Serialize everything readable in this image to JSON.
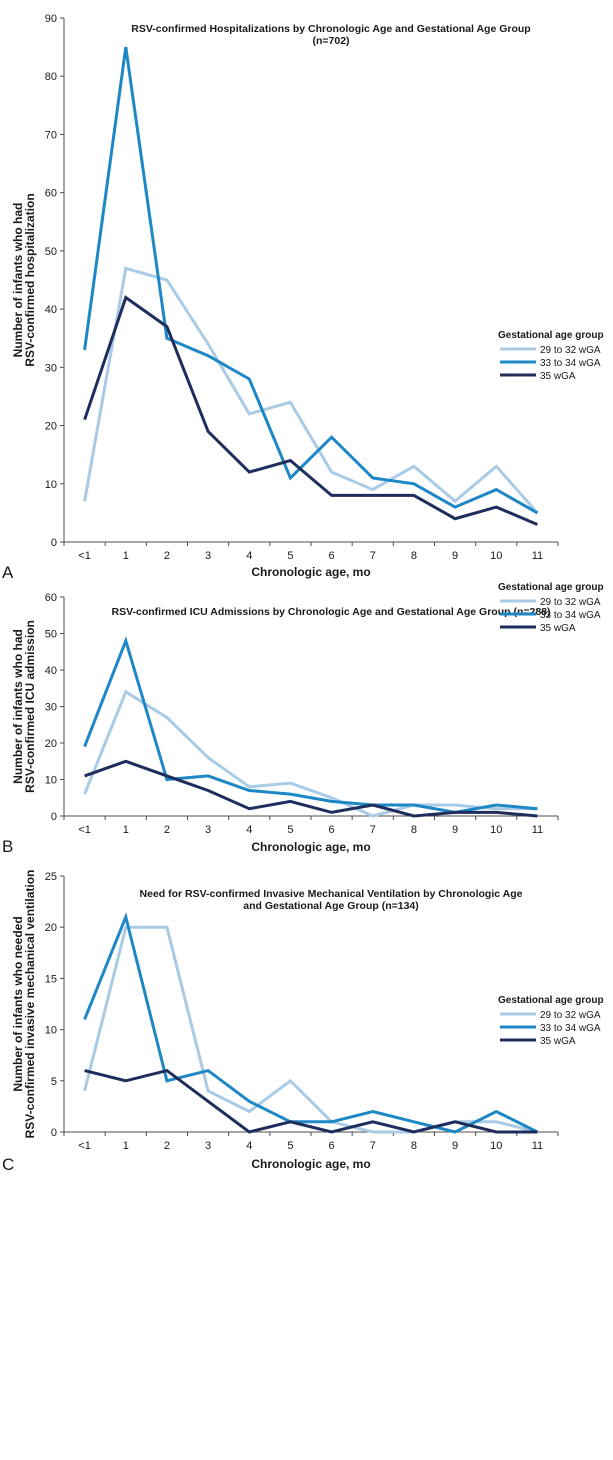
{
  "chart_data": [
    {
      "type": "line",
      "panel": "A",
      "title": "RSV-confirmed Hospitalizations by Chronologic Age and Gestational Age Group",
      "title_line2": "(n=702)",
      "xlabel": "Chronologic age, mo",
      "ylabel": "Number of infants who had",
      "ylabel_line2": "RSV-confirmed hospitalization",
      "categories": [
        "<1",
        "1",
        "2",
        "3",
        "4",
        "5",
        "6",
        "7",
        "8",
        "9",
        "10",
        "11"
      ],
      "ylim": [
        0,
        90
      ],
      "yticks": [
        0,
        10,
        20,
        30,
        40,
        50,
        60,
        70,
        80,
        90
      ],
      "legend_title": "Gestational age group",
      "legend_position": "right",
      "series": [
        {
          "name": "29 to 32 wGA",
          "color": "#a9cbe6",
          "values": [
            7,
            47,
            45,
            34,
            22,
            24,
            12,
            9,
            13,
            7,
            13,
            5
          ]
        },
        {
          "name": "33 to 34 wGA",
          "color": "#1e87c6",
          "values": [
            33,
            85,
            35,
            32,
            28,
            11,
            18,
            11,
            10,
            6,
            9,
            5
          ]
        },
        {
          "name": "35 wGA",
          "color": "#1f2d5c",
          "values": [
            21,
            42,
            37,
            19,
            12,
            14,
            8,
            8,
            8,
            4,
            6,
            3
          ]
        }
      ]
    },
    {
      "type": "line",
      "panel": "B",
      "title": "RSV-confirmed ICU Admissions by Chronologic Age and Gestational Age Group (n=288)",
      "title_line2": "",
      "xlabel": "Chronologic age, mo",
      "ylabel": "Number of infants who had",
      "ylabel_line2": "RSV-confirmed ICU admission",
      "categories": [
        "<1",
        "1",
        "2",
        "3",
        "4",
        "5",
        "6",
        "7",
        "8",
        "9",
        "10",
        "11"
      ],
      "ylim": [
        0,
        60
      ],
      "yticks": [
        0,
        10,
        20,
        30,
        40,
        50,
        60
      ],
      "legend_title": "Gestational age group",
      "legend_position": "right",
      "series": [
        {
          "name": "29 to 32 wGA",
          "color": "#a9cbe6",
          "values": [
            6,
            34,
            27,
            16,
            8,
            9,
            5,
            0,
            3,
            3,
            2,
            2
          ]
        },
        {
          "name": "33 to 34 wGA",
          "color": "#1e87c6",
          "values": [
            19,
            48,
            10,
            11,
            7,
            6,
            4,
            3,
            3,
            1,
            3,
            2
          ]
        },
        {
          "name": "35 wGA",
          "color": "#1f2d5c",
          "values": [
            11,
            15,
            11,
            7,
            2,
            4,
            1,
            3,
            0,
            1,
            1,
            0
          ]
        }
      ]
    },
    {
      "type": "line",
      "panel": "C",
      "title": "Need for RSV-confirmed Invasive Mechanical Ventilation by Chronologic Age",
      "title_line2": "and Gestational Age Group (n=134)",
      "xlabel": "Chronologic age, mo",
      "ylabel": "Number of infants who needed",
      "ylabel_line2": "RSV-confirmed invasive mechanical ventilation",
      "categories": [
        "<1",
        "1",
        "2",
        "3",
        "4",
        "5",
        "6",
        "7",
        "8",
        "9",
        "10",
        "11"
      ],
      "ylim": [
        0,
        25
      ],
      "yticks": [
        0,
        5,
        10,
        15,
        20,
        25
      ],
      "legend_title": "Gestational age group",
      "legend_position": "right",
      "series": [
        {
          "name": "29 to 32 wGA",
          "color": "#a9cbe6",
          "values": [
            4,
            20,
            20,
            4,
            2,
            5,
            1,
            0,
            0,
            1,
            1,
            0
          ]
        },
        {
          "name": "33 to 34 wGA",
          "color": "#1e87c6",
          "values": [
            11,
            21,
            5,
            6,
            3,
            1,
            1,
            2,
            1,
            0,
            2,
            0
          ]
        },
        {
          "name": "35 wGA",
          "color": "#1f2d5c",
          "values": [
            6,
            5,
            6,
            3,
            0,
            1,
            0,
            1,
            0,
            1,
            0,
            0
          ]
        }
      ]
    }
  ]
}
